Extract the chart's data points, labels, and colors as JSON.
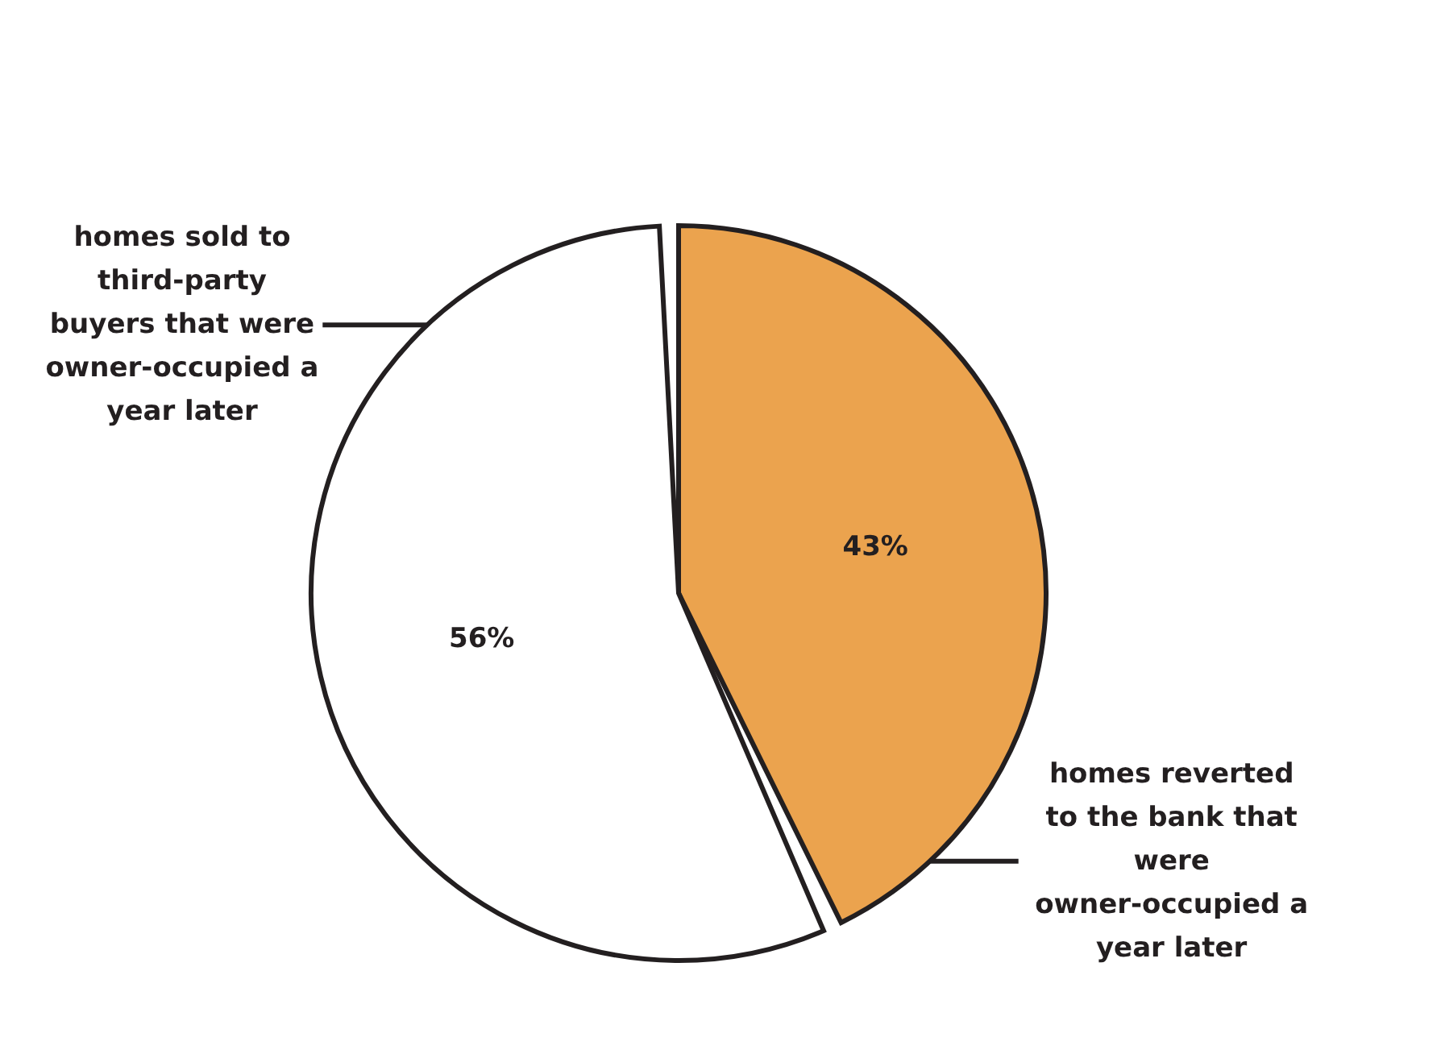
{
  "chart_data": {
    "type": "pie",
    "categories": [
      "homes reverted to the bank that were owner-occupied a year later",
      "homes sold to third-party buyers that were owner-occupied a year later"
    ],
    "values": [
      43,
      56
    ],
    "colors": [
      "#eba34e",
      "#ffffff"
    ],
    "value_labels": [
      "43%",
      "56%"
    ]
  }
}
